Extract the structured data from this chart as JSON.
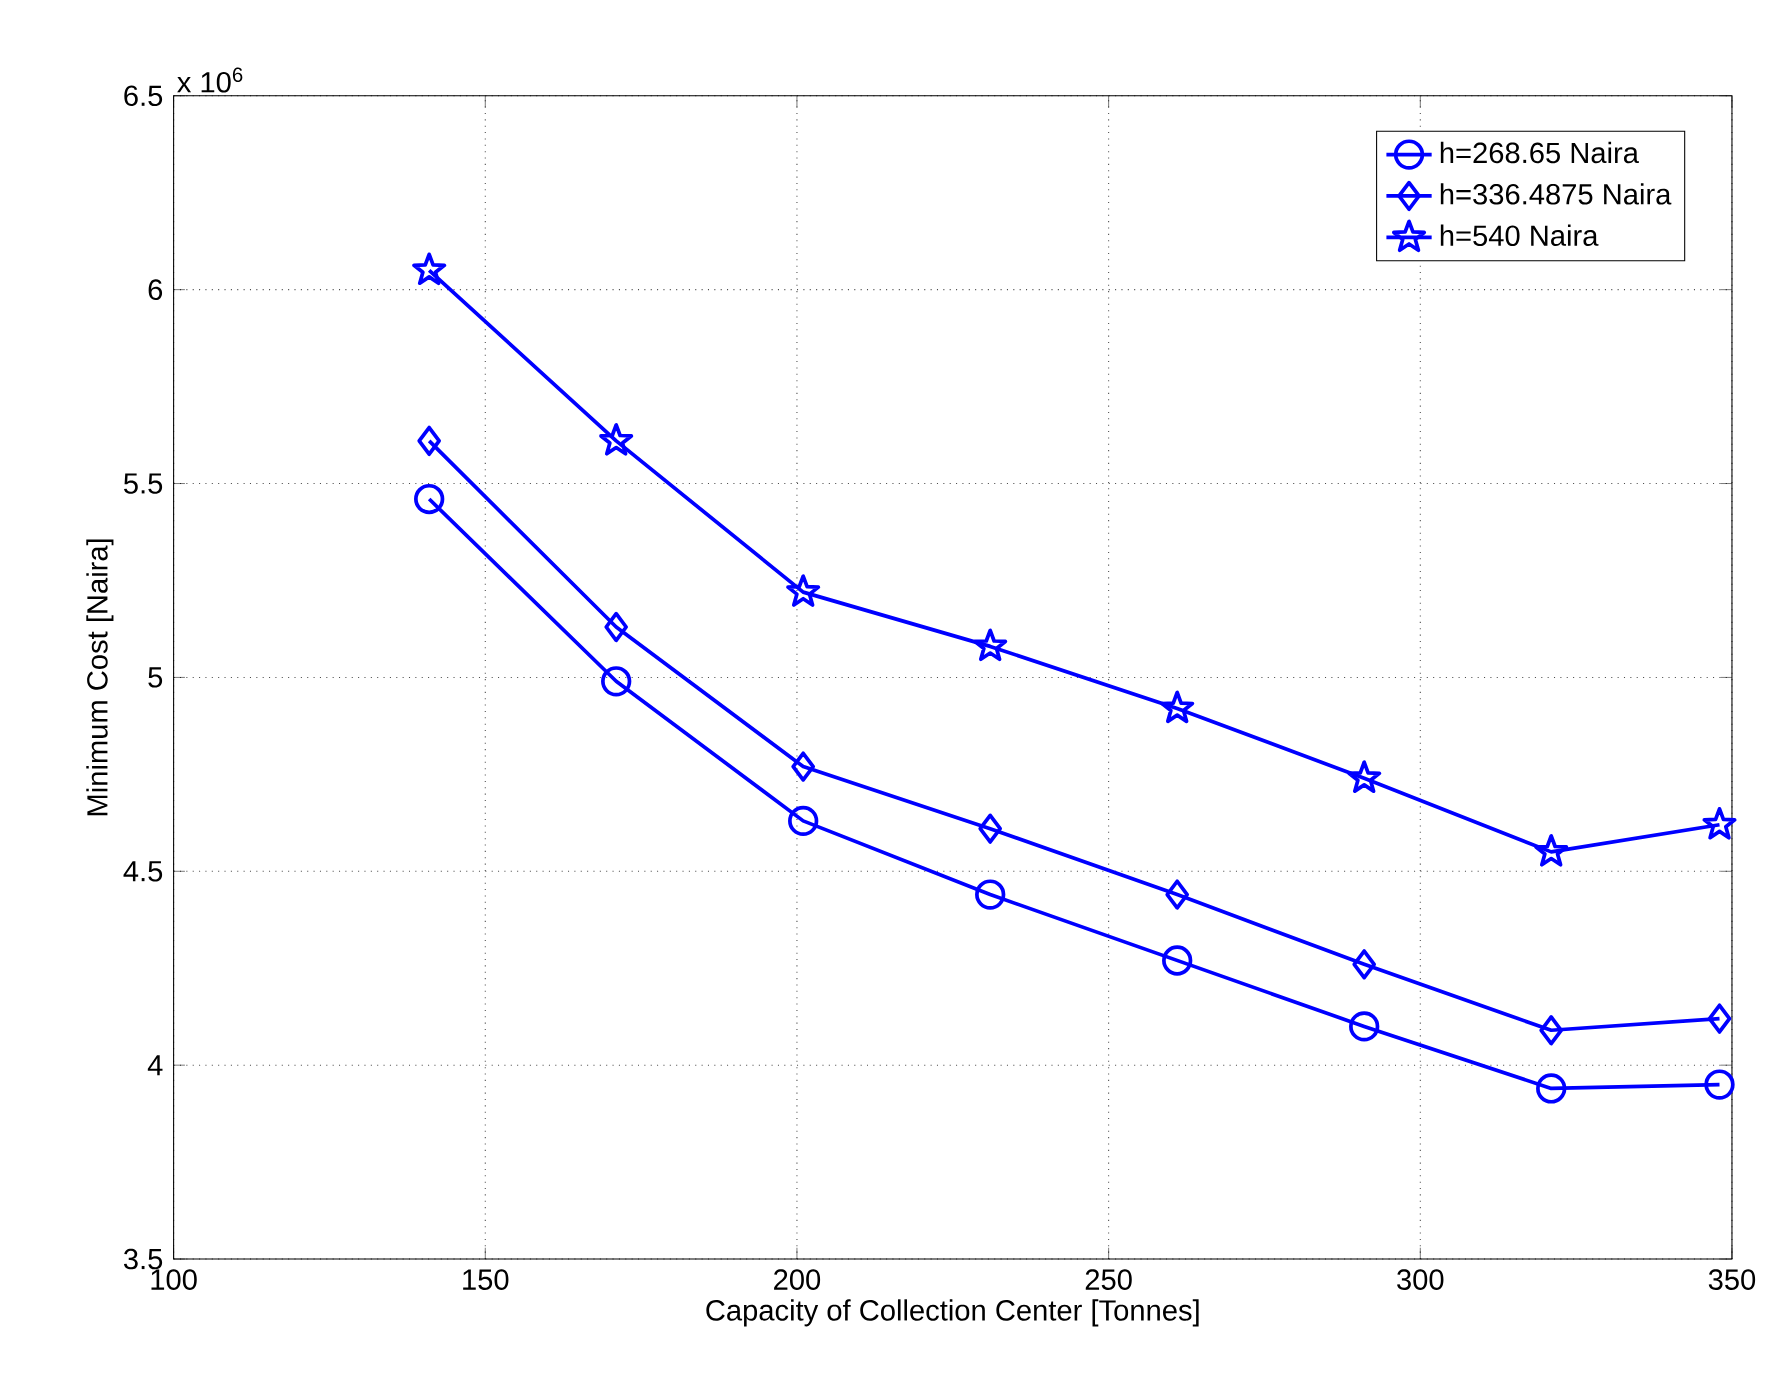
{
  "chart_data": {
    "type": "line",
    "xlabel": "Capacity of Collection Center [Tonnes]",
    "ylabel": "Minimum Cost [Naira]",
    "annotations": [
      "x 10$^{6}$"
    ],
    "x": [
      141,
      171,
      201,
      231,
      261,
      291,
      321,
      348
    ],
    "series": [
      {
        "name": "h=268.65 Naira",
        "color": "#0000ff",
        "marker": "circle",
        "values": [
          5.46,
          4.99,
          4.63,
          4.44,
          4.27,
          4.1,
          3.94,
          3.95
        ]
      },
      {
        "name": "h=336.4875 Naira",
        "color": "#0000ff",
        "marker": "diamond",
        "values": [
          5.61,
          5.13,
          4.77,
          4.61,
          4.44,
          4.26,
          4.09,
          4.12
        ]
      },
      {
        "name": "h=540 Naira",
        "color": "#0000ff",
        "marker": "star",
        "values": [
          6.05,
          5.61,
          5.22,
          5.08,
          4.92,
          4.74,
          4.55,
          4.62
        ]
      }
    ],
    "xlim": [
      100,
      350
    ],
    "ylim": [
      3.5,
      6.5
    ],
    "xticks": [
      100,
      150,
      200,
      250,
      300,
      350
    ],
    "yticks": [
      3.5,
      4,
      4.5,
      5,
      5.5,
      6,
      6.5
    ],
    "grid": true,
    "legend": "top right",
    "line_style": "solid"
  }
}
